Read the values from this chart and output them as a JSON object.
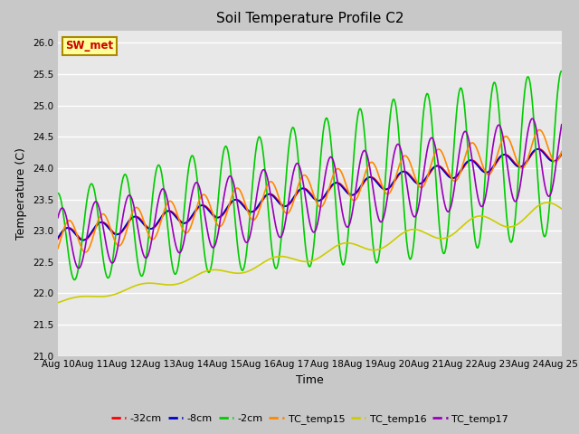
{
  "title": "Soil Temperature Profile C2",
  "xlabel": "Time",
  "ylabel": "Temperature (C)",
  "ylim": [
    21.0,
    26.2
  ],
  "yticks": [
    21.0,
    21.5,
    22.0,
    22.5,
    23.0,
    23.5,
    24.0,
    24.5,
    25.0,
    25.5,
    26.0
  ],
  "xlim": [
    0,
    15
  ],
  "xtick_labels": [
    "Aug 10",
    "Aug 11",
    "Aug 12",
    "Aug 13",
    "Aug 14",
    "Aug 15",
    "Aug 16",
    "Aug 17",
    "Aug 18",
    "Aug 19",
    "Aug 20",
    "Aug 21",
    "Aug 22",
    "Aug 23",
    "Aug 24",
    "Aug 25"
  ],
  "bg_color": "#e8e8e8",
  "grid_color": "white",
  "annotation_text": "SW_met",
  "annotation_bg": "#ffff99",
  "annotation_border": "#aa8800",
  "annotation_fg": "#cc0000",
  "series": {
    "neg32cm": {
      "color": "#ff0000",
      "label": "-32cm",
      "lw": 1.2
    },
    "neg8cm": {
      "color": "#0000cc",
      "label": "-8cm",
      "lw": 1.2
    },
    "neg2cm": {
      "color": "#00cc00",
      "label": "-2cm",
      "lw": 1.2
    },
    "TC_temp15": {
      "color": "#ff8800",
      "label": "TC_temp15",
      "lw": 1.2
    },
    "TC_temp16": {
      "color": "#cccc00",
      "label": "TC_temp16",
      "lw": 1.2
    },
    "TC_temp17": {
      "color": "#9900bb",
      "label": "TC_temp17",
      "lw": 1.2
    }
  }
}
